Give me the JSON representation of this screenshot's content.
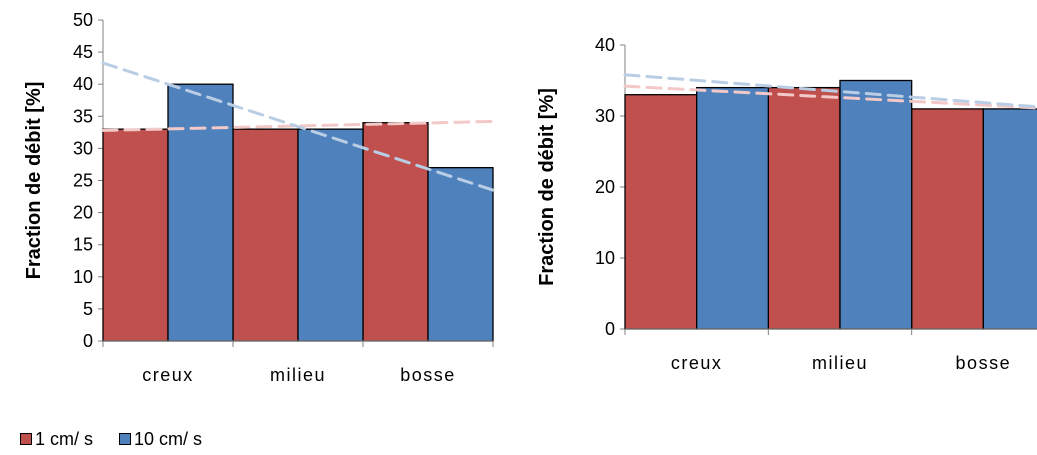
{
  "colors": {
    "series_1": "#C0504D",
    "series_2": "#4F81BD",
    "trend_1": "#F2C9C8",
    "trend_2": "#B9CDE5",
    "axis": "#808080"
  },
  "legend": {
    "items": [
      {
        "label": "1 cm/ s"
      },
      {
        "label": "10 cm/ s"
      }
    ]
  },
  "chart_data": [
    {
      "type": "bar",
      "ylabel": "Fraction de débit [%]",
      "categories": [
        "creux",
        "milieu",
        "bosse"
      ],
      "ylim": [
        0,
        50
      ],
      "yticks": [
        0,
        5,
        10,
        15,
        20,
        25,
        30,
        35,
        40,
        45,
        50
      ],
      "series": [
        {
          "name": "1 cm/ s",
          "values": [
            33,
            33,
            34
          ]
        },
        {
          "name": "10 cm/ s",
          "values": [
            40,
            33,
            27
          ]
        }
      ],
      "trendlines": [
        {
          "series": "1 cm/ s",
          "style": "dashed linear",
          "start": 32.8,
          "end": 34.2
        },
        {
          "series": "10 cm/ s",
          "style": "dashed linear",
          "start": 43.3,
          "end": 23.5
        }
      ]
    },
    {
      "type": "bar",
      "ylabel": "Fraction de débit [%]",
      "categories": [
        "creux",
        "milieu",
        "bosse"
      ],
      "ylim": [
        0,
        40
      ],
      "yticks": [
        0,
        10,
        20,
        30,
        40
      ],
      "series": [
        {
          "name": "1 cm/ s",
          "values": [
            33,
            34,
            31
          ]
        },
        {
          "name": "10 cm/ s",
          "values": [
            34,
            35,
            31
          ]
        }
      ],
      "trendlines": [
        {
          "series": "1 cm/ s",
          "style": "dashed linear",
          "start": 34.2,
          "end": 31.0
        },
        {
          "series": "10 cm/ s",
          "style": "dashed linear",
          "start": 35.8,
          "end": 31.1
        }
      ]
    }
  ]
}
